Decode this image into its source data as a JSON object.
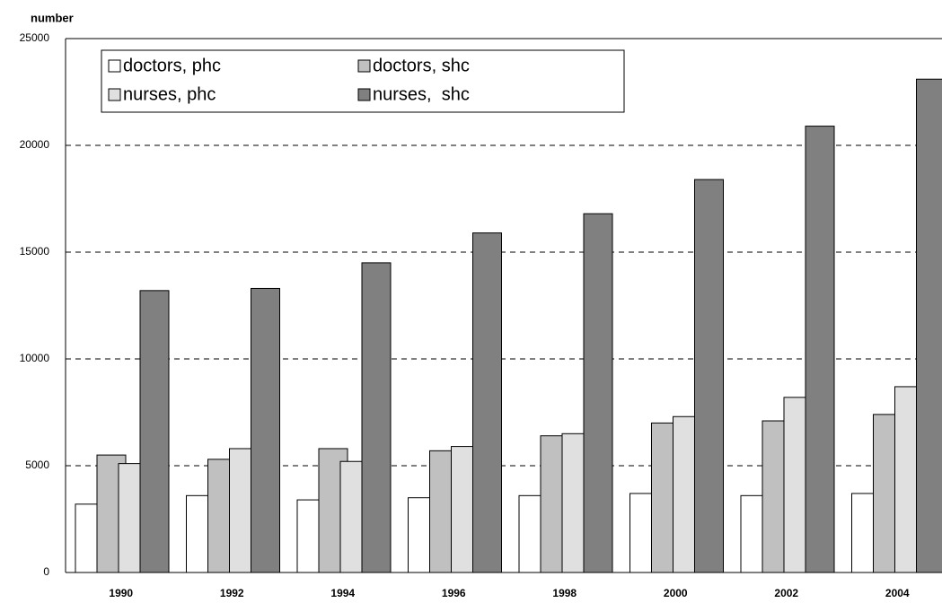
{
  "chart_data": {
    "type": "bar",
    "y_label": "number",
    "categories": [
      "1990",
      "1992",
      "1994",
      "1996",
      "1998",
      "2000",
      "2002",
      "2004"
    ],
    "series": [
      {
        "name": "doctors, phc",
        "color": "#ffffff",
        "values": [
          3200,
          3600,
          3400,
          3500,
          3600,
          3700,
          3600,
          3700
        ]
      },
      {
        "name": "doctors, shc",
        "color": "#c0c0c0",
        "values": [
          5500,
          5300,
          5800,
          5700,
          6400,
          7000,
          7100,
          7400
        ]
      },
      {
        "name": "nurses, phc",
        "color": "#e0e0e0",
        "values": [
          5100,
          5800,
          5200,
          5900,
          6500,
          7300,
          8200,
          8700
        ]
      },
      {
        "name": "nurses,  shc",
        "color": "#808080",
        "values": [
          13200,
          13300,
          14500,
          15900,
          16800,
          18400,
          20900,
          23100
        ]
      }
    ],
    "ylim": [
      0,
      25000
    ],
    "yticks": [
      0,
      5000,
      10000,
      15000,
      20000,
      25000
    ],
    "grid": true
  }
}
